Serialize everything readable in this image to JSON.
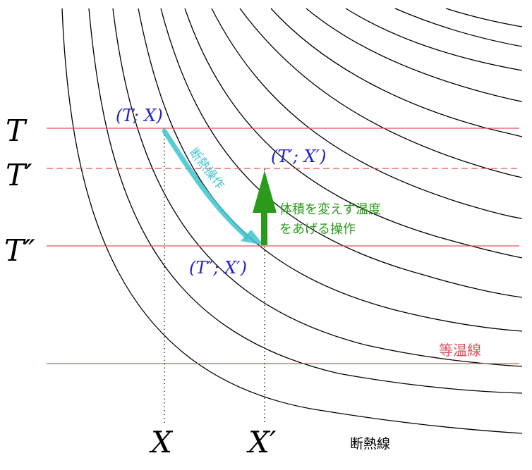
{
  "diagram": {
    "temperature_labels": {
      "t": "T",
      "t_prime": "T′",
      "t_double_prime": "T″"
    },
    "volume_labels": {
      "x": "X",
      "x_prime": "X′"
    },
    "point_labels": {
      "start": "(T; X)",
      "end_of_adiabatic": "(T″; X′)",
      "final": "(T′; X′)"
    },
    "annotations": {
      "adiabatic_process": "断熱操作",
      "heating_line1": "体積を変えず温度",
      "heating_line2": "をあげる操作",
      "isotherm_legend": "等温線",
      "adiabat_legend": "断熱線"
    },
    "colors": {
      "isotherm": "#e0505a",
      "adiabat": "#000000",
      "point_label": "#2222cc",
      "adiabatic_arrow": "#3cc4cc",
      "heating_arrow": "#2a9a1a",
      "dotted_guide": "#000000"
    }
  }
}
